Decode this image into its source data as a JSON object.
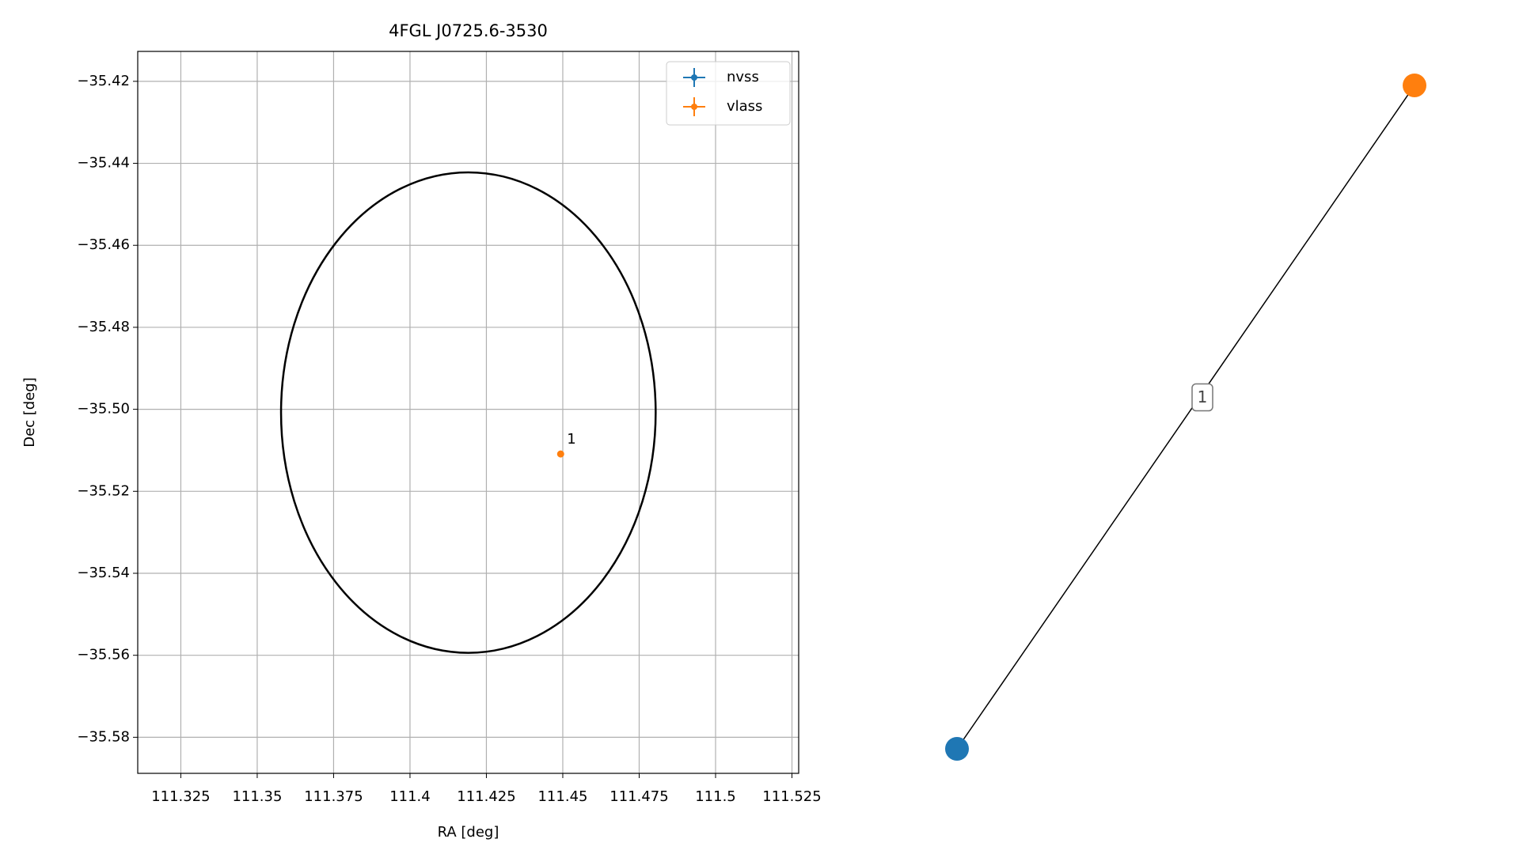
{
  "chart_data": [
    {
      "type": "scatter",
      "title": "4FGL J0725.6-3530",
      "xlabel": "RA [deg]",
      "ylabel": "Dec [deg]",
      "xlim": [
        111.3109,
        111.5272
      ],
      "ylim": [
        -35.5888,
        -35.4127
      ],
      "xticks": [
        111.325,
        111.35,
        111.375,
        111.4,
        111.425,
        111.45,
        111.475,
        111.5,
        111.525
      ],
      "yticks": [
        {
          "value": -35.42,
          "label": "−35.42"
        },
        {
          "value": -35.44,
          "label": "−35.44"
        },
        {
          "value": -35.46,
          "label": "−35.46"
        },
        {
          "value": -35.48,
          "label": "−35.48"
        },
        {
          "value": -35.5,
          "label": "−35.50"
        },
        {
          "value": -35.52,
          "label": "−35.52"
        },
        {
          "value": -35.54,
          "label": "−35.54"
        },
        {
          "value": -35.56,
          "label": "−35.56"
        },
        {
          "value": -35.58,
          "label": "−35.58"
        }
      ],
      "grid": true,
      "legend": "upper right",
      "series": [
        {
          "name": "nvss",
          "color": "#1f77b4",
          "x": [],
          "values": [],
          "labels": []
        },
        {
          "name": "vlass",
          "color": "#ff7f0e",
          "x": [
            111.4493
          ],
          "values": [
            -35.5109
          ],
          "labels": [
            "1"
          ]
        }
      ],
      "ellipse": {
        "center": [
          111.4191,
          -35.5008
        ],
        "width": 0.1226,
        "height": 0.1172,
        "color": "#000000"
      }
    },
    {
      "type": "network",
      "nodes": [
        {
          "color": "#1f77b4"
        },
        {
          "color": "#ff7f0e"
        }
      ],
      "edges": [
        {
          "source": 0,
          "target": 1,
          "label": "1"
        }
      ]
    }
  ]
}
